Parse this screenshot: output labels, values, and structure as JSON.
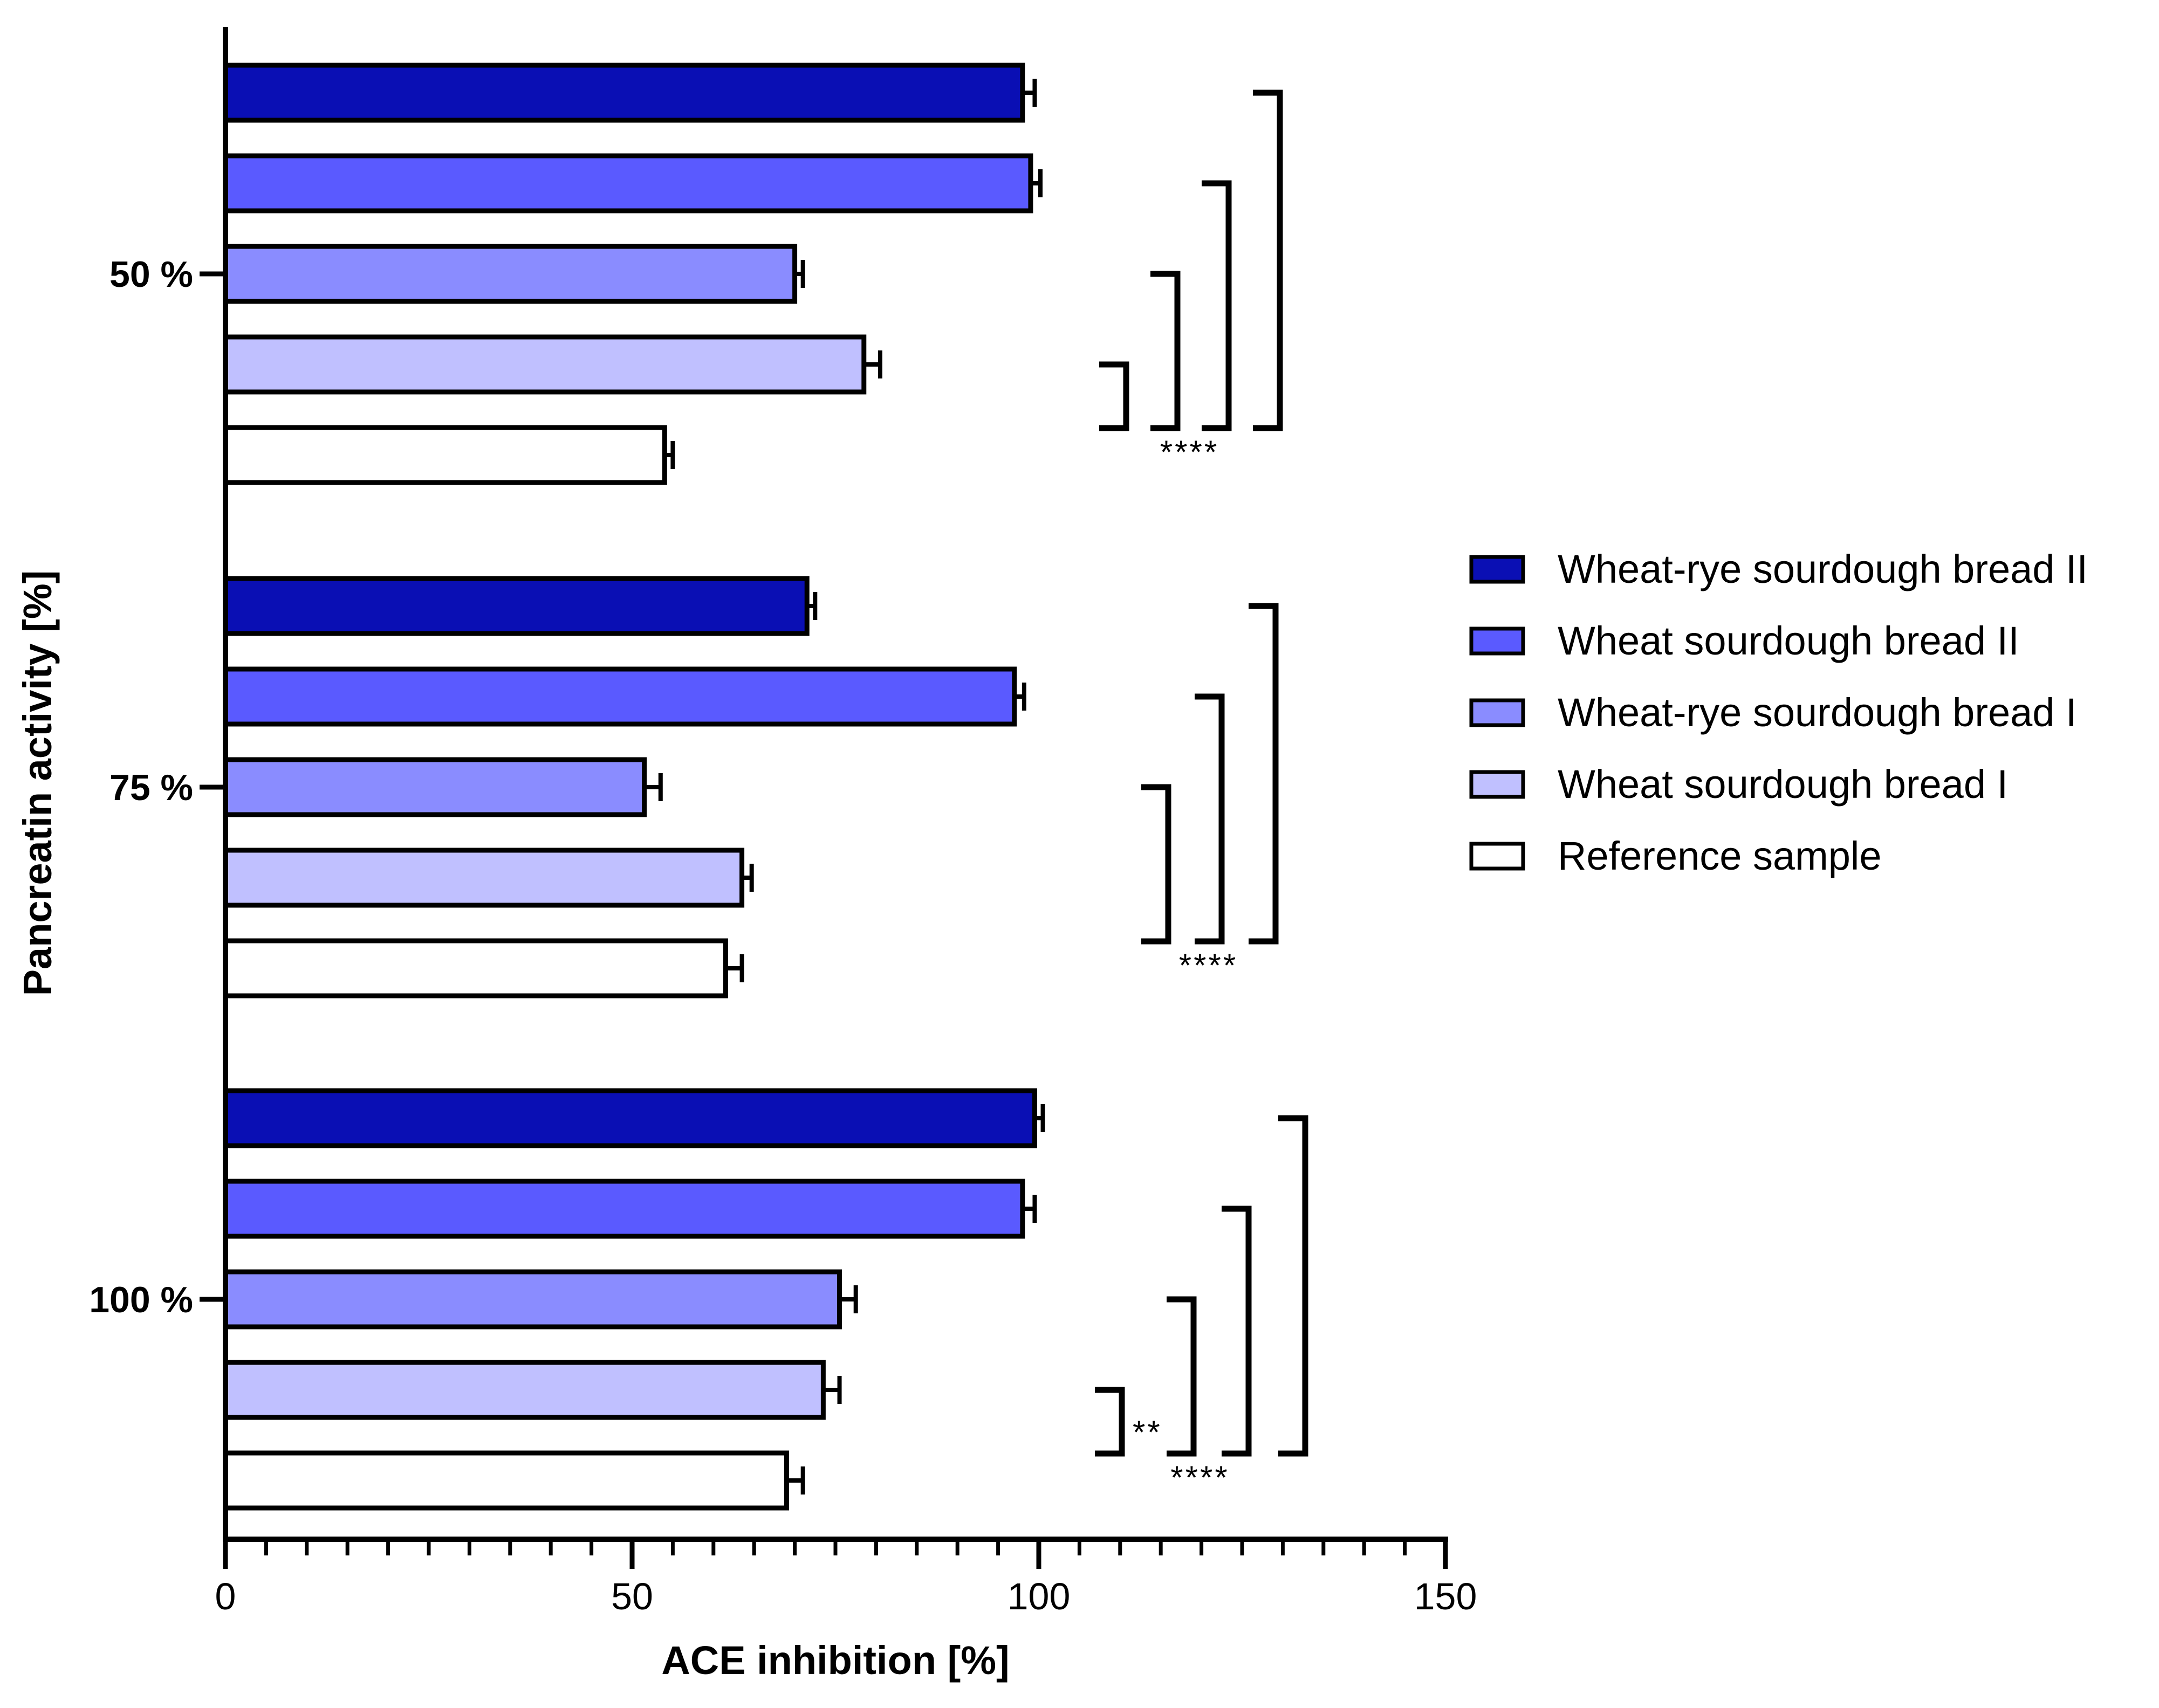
{
  "chart_data": {
    "type": "bar",
    "orientation": "horizontal",
    "xlabel": "ACE inhibition [%]",
    "ylabel": "Pancreatin activity [%]",
    "xlim": [
      0,
      150
    ],
    "x_ticks": [
      0,
      50,
      100,
      150
    ],
    "x_minor_step": 5,
    "categories": [
      "50 %",
      "75 %",
      "100 %"
    ],
    "series": [
      {
        "name": "Wheat-rye sourdough bread II",
        "color": "#0a0fb4",
        "values": [
          98,
          71.5,
          99.5
        ],
        "errors": [
          1.5,
          1.0,
          1.0
        ]
      },
      {
        "name": "Wheat sourdough bread II",
        "color": "#5a5aff",
        "values": [
          99,
          97,
          98
        ],
        "errors": [
          1.2,
          1.2,
          1.5
        ]
      },
      {
        "name": "Wheat-rye sourdough bread I",
        "color": "#8a8cff",
        "values": [
          70,
          51.5,
          75.5
        ],
        "errors": [
          1.0,
          2.0,
          2.0
        ]
      },
      {
        "name": "Wheat sourdough bread I",
        "color": "#c0c0ff",
        "values": [
          78.5,
          63.5,
          73.5
        ],
        "errors": [
          2.0,
          1.2,
          2.0
        ]
      },
      {
        "name": "Reference sample",
        "color": "#ffffff",
        "values": [
          54,
          61.5,
          69
        ],
        "errors": [
          1.0,
          2.0,
          2.0
        ]
      }
    ],
    "significance": [
      {
        "category": "50 %",
        "brackets": [
          {
            "from_series": 3,
            "to_series": 4,
            "label": ""
          },
          {
            "from_series": 2,
            "to_series": 4,
            "label": ""
          },
          {
            "from_series": 1,
            "to_series": 4,
            "label": ""
          },
          {
            "from_series": 0,
            "to_series": 4,
            "label": ""
          }
        ],
        "group_label": "****"
      },
      {
        "category": "75 %",
        "brackets": [
          {
            "from_series": 2,
            "to_series": 4,
            "label": ""
          },
          {
            "from_series": 1,
            "to_series": 4,
            "label": ""
          },
          {
            "from_series": 0,
            "to_series": 4,
            "label": ""
          }
        ],
        "group_label": "****"
      },
      {
        "category": "100 %",
        "brackets": [
          {
            "from_series": 3,
            "to_series": 4,
            "label": "**"
          },
          {
            "from_series": 2,
            "to_series": 4,
            "label": ""
          },
          {
            "from_series": 1,
            "to_series": 4,
            "label": ""
          },
          {
            "from_series": 0,
            "to_series": 4,
            "label": ""
          }
        ],
        "group_label": "****"
      }
    ],
    "legend_position": "right"
  }
}
